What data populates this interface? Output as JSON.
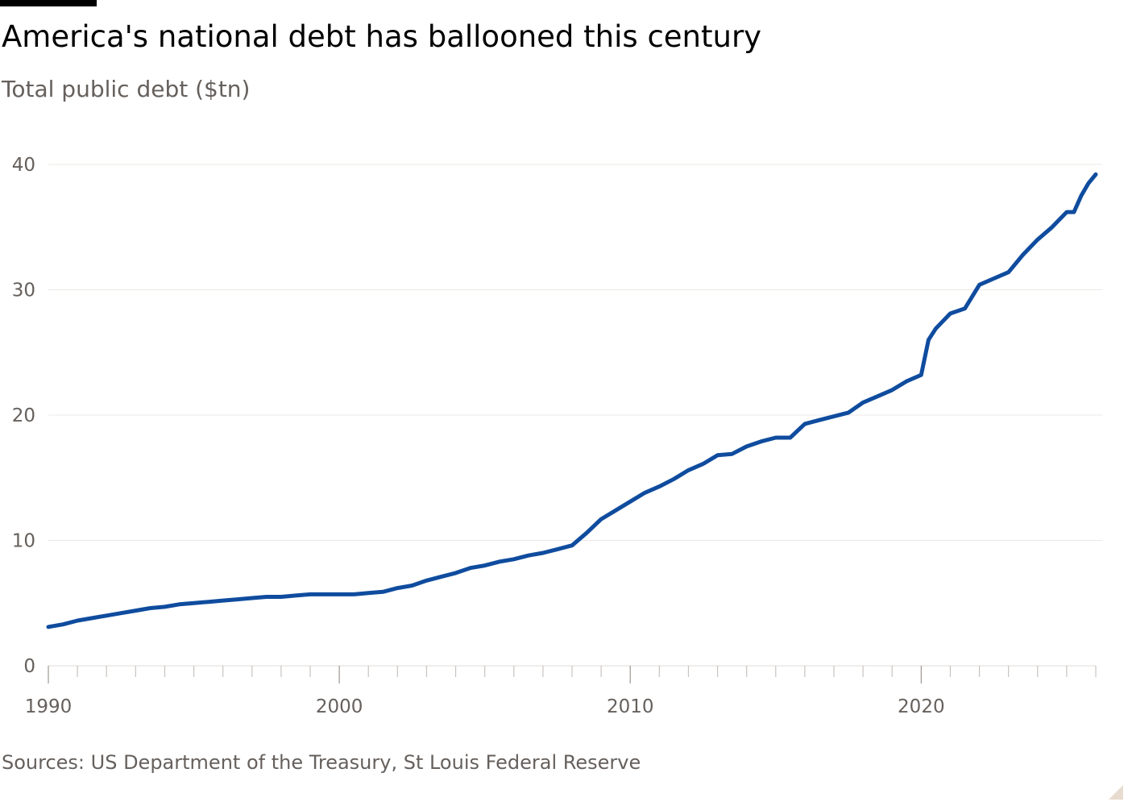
{
  "header": {
    "title": "America's national debt has ballooned this century",
    "subtitle": "Total public debt ($tn)"
  },
  "footer": {
    "source": "Sources: US Department of the Treasury, St Louis Federal Reserve"
  },
  "colors": {
    "line": "#0f4c9e",
    "grid": "#ece8e5",
    "axis_text": "#66605c",
    "axis_line": "#66605c"
  },
  "chart_data": {
    "type": "line",
    "title": "America's national debt has ballooned this century",
    "ylabel": "Total public debt ($tn)",
    "xlabel": "",
    "xlim": [
      1990,
      2026
    ],
    "ylim": [
      0,
      40
    ],
    "yticks": [
      "0",
      "10",
      "20",
      "30",
      "40"
    ],
    "xticks": [
      "1990",
      "2000",
      "2010",
      "2020"
    ],
    "grid": true,
    "series": [
      {
        "x": [
          1990.0,
          1990.5,
          1991.0,
          1991.5,
          1992.0,
          1992.5,
          1993.0,
          1993.5,
          1994.0,
          1994.5,
          1995.0,
          1995.5,
          1996.0,
          1996.5,
          1997.0,
          1997.5,
          1998.0,
          1998.5,
          1999.0,
          1999.5,
          2000.0,
          2000.5,
          2001.0,
          2001.5,
          2002.0,
          2002.5,
          2003.0,
          2003.5,
          2004.0,
          2004.5,
          2005.0,
          2005.5,
          2006.0,
          2006.5,
          2007.0,
          2007.5,
          2008.0,
          2008.5,
          2009.0,
          2009.5,
          2010.0,
          2010.5,
          2011.0,
          2011.5,
          2012.0,
          2012.5,
          2013.0,
          2013.5,
          2014.0,
          2014.5,
          2015.0,
          2015.5,
          2016.0,
          2016.5,
          2017.0,
          2017.5,
          2018.0,
          2018.5,
          2019.0,
          2019.5,
          2020.0,
          2020.25,
          2020.5,
          2021.0,
          2021.5,
          2022.0,
          2022.5,
          2023.0,
          2023.5,
          2024.0,
          2024.5,
          2025.0,
          2025.25,
          2025.5,
          2025.75,
          2026.0
        ],
        "values": [
          3.1,
          3.3,
          3.6,
          3.8,
          4.0,
          4.2,
          4.4,
          4.6,
          4.7,
          4.9,
          5.0,
          5.1,
          5.2,
          5.3,
          5.4,
          5.5,
          5.5,
          5.6,
          5.7,
          5.7,
          5.7,
          5.7,
          5.8,
          5.9,
          6.2,
          6.4,
          6.8,
          7.1,
          7.4,
          7.8,
          8.0,
          8.3,
          8.5,
          8.8,
          9.0,
          9.3,
          9.6,
          10.6,
          11.7,
          12.4,
          13.1,
          13.8,
          14.3,
          14.9,
          15.6,
          16.1,
          16.8,
          16.9,
          17.5,
          17.9,
          18.2,
          18.2,
          19.3,
          19.6,
          19.9,
          20.2,
          21.0,
          21.5,
          22.0,
          22.7,
          23.2,
          26.0,
          26.9,
          28.1,
          28.5,
          30.4,
          30.9,
          31.4,
          32.8,
          34.0,
          35.0,
          36.2,
          36.2,
          37.5,
          38.5,
          39.2
        ]
      }
    ]
  }
}
